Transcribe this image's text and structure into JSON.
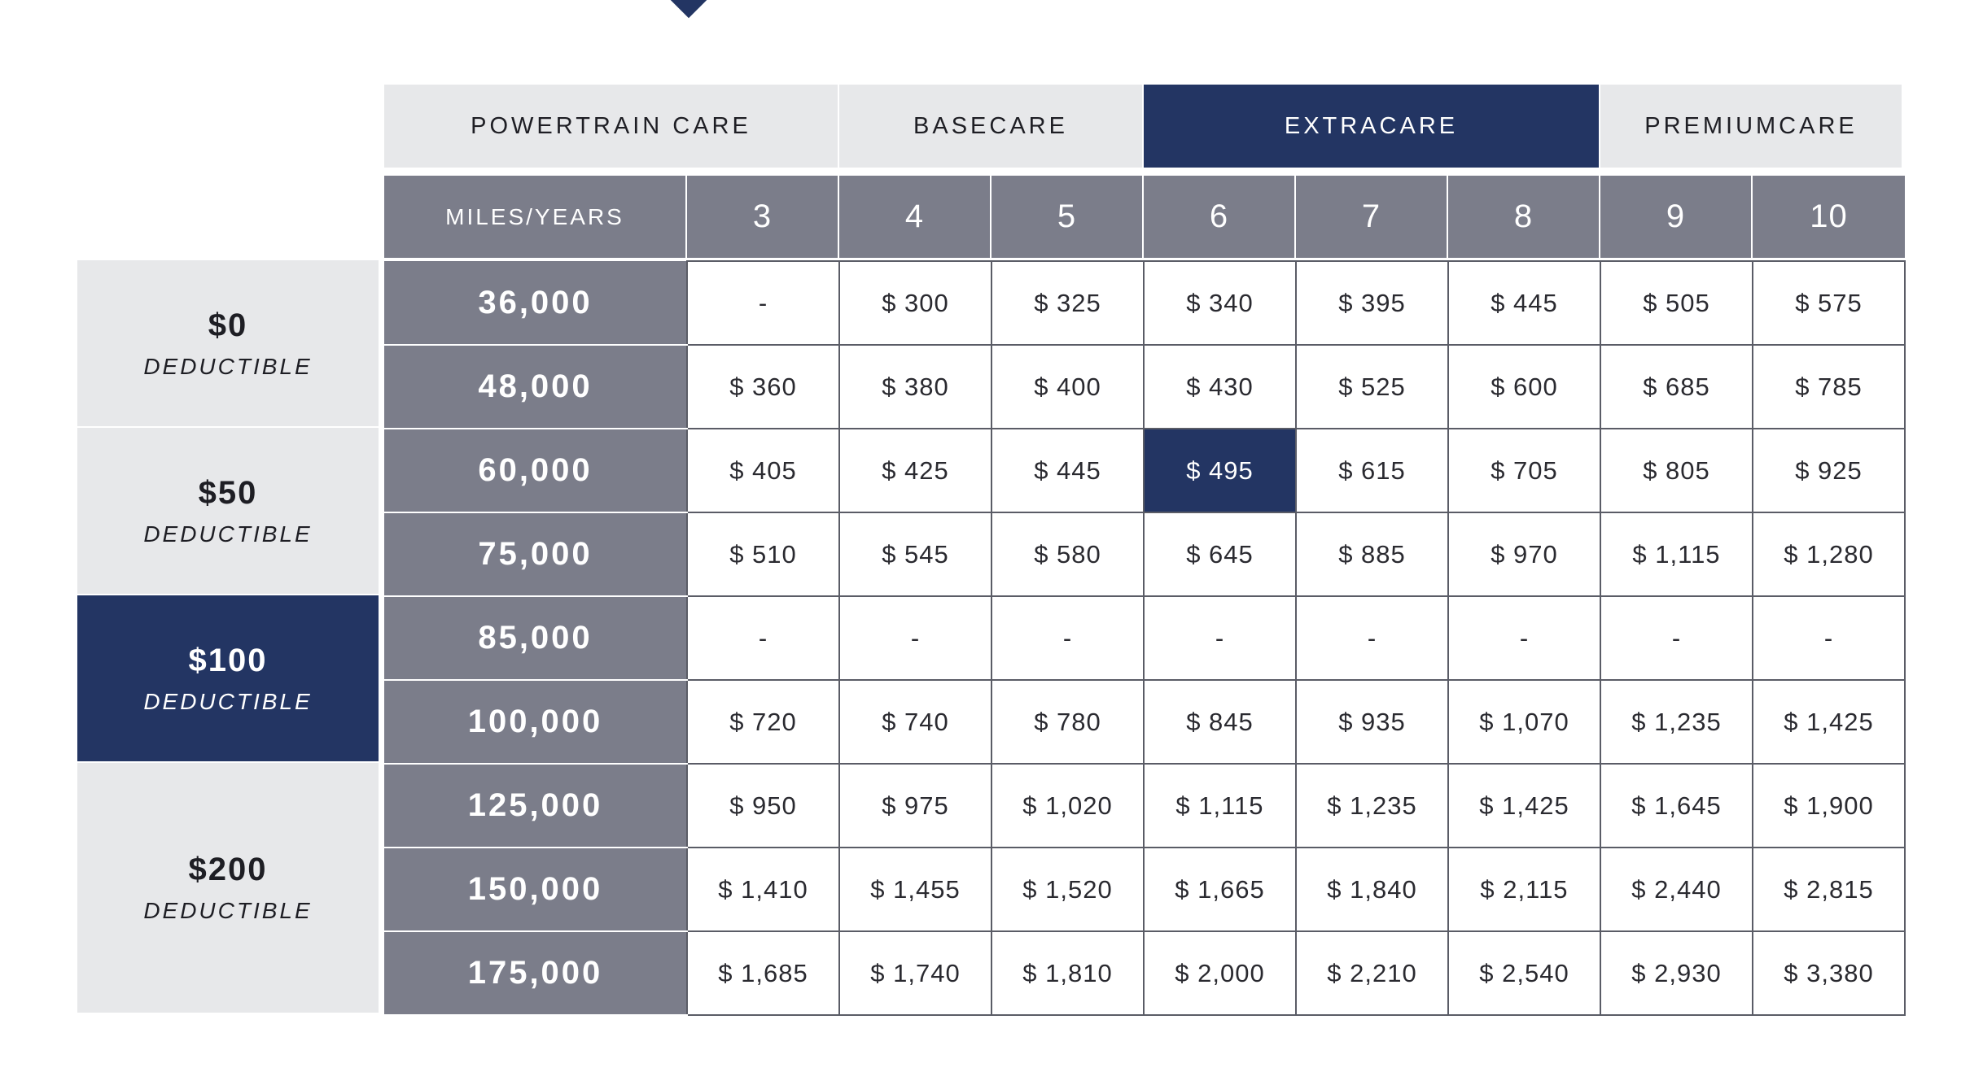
{
  "plans": [
    {
      "label": "POWERTRAIN CARE",
      "active": false
    },
    {
      "label": "BASECARE",
      "active": false
    },
    {
      "label": "EXTRACARE",
      "active": true
    },
    {
      "label": "PREMIUMCARE",
      "active": false
    }
  ],
  "header": {
    "miles_years_label": "MILES/YEARS",
    "years": [
      "3",
      "4",
      "5",
      "6",
      "7",
      "8",
      "9",
      "10"
    ]
  },
  "deductibles": [
    {
      "amount": "$0",
      "label": "DEDUCTIBLE",
      "rows": 2,
      "active": false
    },
    {
      "amount": "$50",
      "label": "DEDUCTIBLE",
      "rows": 2,
      "active": false
    },
    {
      "amount": "$100",
      "label": "DEDUCTIBLE",
      "rows": 2,
      "active": true
    },
    {
      "amount": "$200",
      "label": "DEDUCTIBLE",
      "rows": 3,
      "active": false
    }
  ],
  "rows": [
    {
      "miles": "36,000",
      "prices": [
        "-",
        "$ 300",
        "$ 325",
        "$ 340",
        "$ 395",
        "$ 445",
        "$ 505",
        "$ 575"
      ]
    },
    {
      "miles": "48,000",
      "prices": [
        "$ 360",
        "$ 380",
        "$ 400",
        "$ 430",
        "$ 525",
        "$ 600",
        "$ 685",
        "$ 785"
      ]
    },
    {
      "miles": "60,000",
      "prices": [
        "$ 405",
        "$ 425",
        "$ 445",
        "$ 495",
        "$ 615",
        "$ 705",
        "$ 805",
        "$ 925"
      ]
    },
    {
      "miles": "75,000",
      "prices": [
        "$ 510",
        "$ 545",
        "$ 580",
        "$ 645",
        "$ 885",
        "$ 970",
        "$ 1,115",
        "$ 1,280"
      ]
    },
    {
      "miles": "85,000",
      "prices": [
        "-",
        "-",
        "-",
        "-",
        "-",
        "-",
        "-",
        "-"
      ]
    },
    {
      "miles": "100,000",
      "prices": [
        "$ 720",
        "$ 740",
        "$ 780",
        "$ 845",
        "$ 935",
        "$ 1,070",
        "$ 1,235",
        "$ 1,425"
      ]
    },
    {
      "miles": "125,000",
      "prices": [
        "$ 950",
        "$ 975",
        "$ 1,020",
        "$ 1,115",
        "$ 1,235",
        "$ 1,425",
        "$ 1,645",
        "$ 1,900"
      ]
    },
    {
      "miles": "150,000",
      "prices": [
        "$ 1,410",
        "$ 1,455",
        "$ 1,520",
        "$ 1,665",
        "$ 1,840",
        "$ 2,115",
        "$ 2,440",
        "$ 2,815"
      ]
    },
    {
      "miles": "175,000",
      "prices": [
        "$ 1,685",
        "$ 1,740",
        "$ 1,810",
        "$ 2,000",
        "$ 2,210",
        "$ 2,540",
        "$ 2,930",
        "$ 3,380"
      ]
    }
  ],
  "highlight": {
    "row": 2,
    "col": 3
  },
  "colors": {
    "accent": "#233563",
    "header_gray": "#7b7d8a",
    "light_gray": "#e7e8ea"
  }
}
